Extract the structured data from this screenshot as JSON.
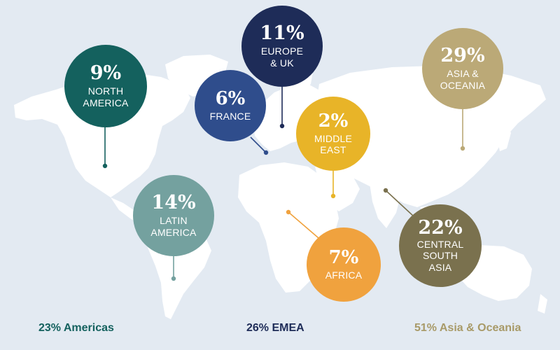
{
  "regions": [
    {
      "id": "north-america",
      "percent": "9%",
      "label_lines": [
        "NORTH",
        "AMERICA"
      ],
      "color": "#14615e"
    },
    {
      "id": "europe-uk",
      "percent": "11%",
      "label_lines": [
        "EUROPE",
        "& UK"
      ],
      "color": "#1e2c58"
    },
    {
      "id": "france",
      "percent": "6%",
      "label_lines": [
        "FRANCE"
      ],
      "color": "#2f4d8c"
    },
    {
      "id": "middle-east",
      "percent": "2%",
      "label_lines": [
        "MIDDLE",
        "EAST"
      ],
      "color": "#e8b428"
    },
    {
      "id": "asia-oceania",
      "percent": "29%",
      "label_lines": [
        "ASIA &",
        "OCEANIA"
      ],
      "color": "#bba977"
    },
    {
      "id": "latin-america",
      "percent": "14%",
      "label_lines": [
        "LATIN",
        "AMERICA"
      ],
      "color": "#74a19f"
    },
    {
      "id": "africa",
      "percent": "7%",
      "label_lines": [
        "AFRICA"
      ],
      "color": "#f0a23e"
    },
    {
      "id": "central-south-asia",
      "percent": "22%",
      "label_lines": [
        "CENTRAL",
        "SOUTH",
        "ASIA"
      ],
      "color": "#7a714e"
    }
  ],
  "summary": [
    {
      "id": "americas",
      "text": "23% Americas",
      "color": "#14615e"
    },
    {
      "id": "emea",
      "text": "26% EMEA",
      "color": "#1e2c58"
    },
    {
      "id": "asia-oceania",
      "text": "51% Asia & Oceania",
      "color": "#a89a68"
    }
  ]
}
